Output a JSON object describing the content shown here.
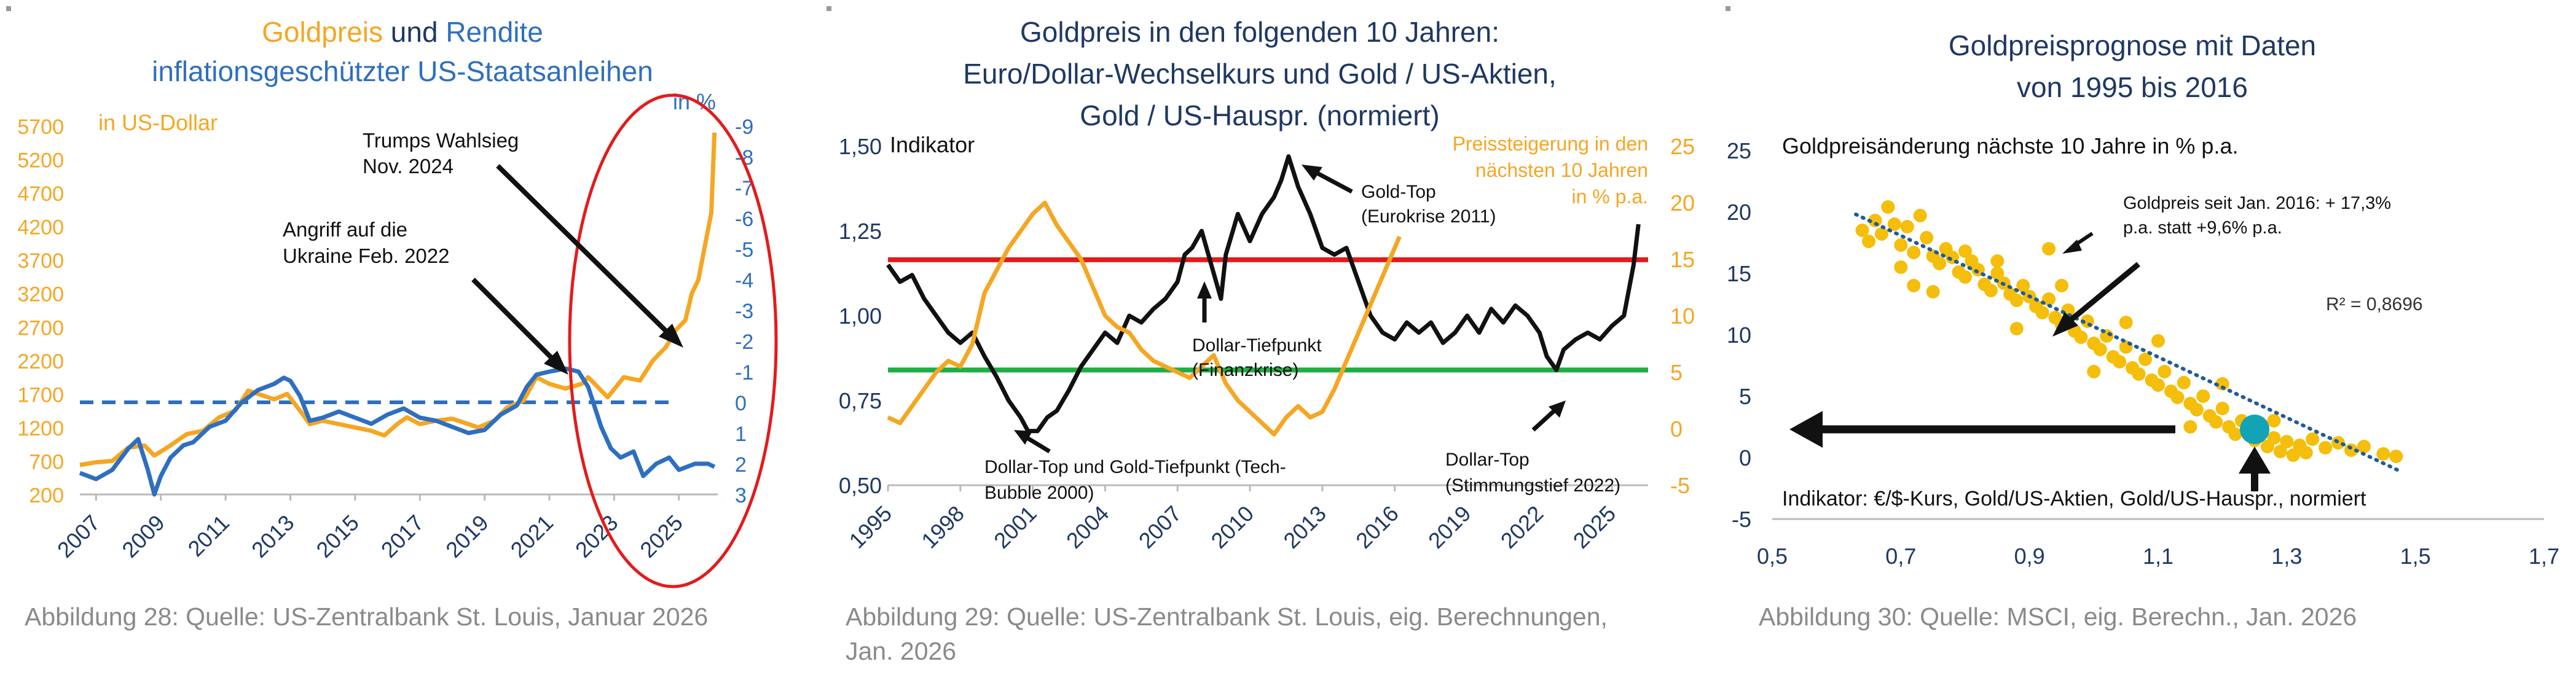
{
  "colors": {
    "gold": "#F5A623",
    "blue": "#2E6FBF",
    "navy": "#1F3864",
    "black": "#111111",
    "red": "#E31B1B",
    "green": "#1FAE45",
    "scatter": "#F5BE0B",
    "teal": "#12A3B5",
    "trend": "#1F5C99",
    "caption": "#8a8a8a"
  },
  "charts": {
    "left": {
      "title": {
        "part1": "Goldpreis",
        "part2": " und ",
        "part3": "Rendite",
        "line2": "inflationsgeschützter US-Staatsanleihen"
      },
      "left_axis_label": "in US-Dollar",
      "right_axis_label": "in %",
      "annotations": {
        "trump_1": "Trumps Wahlsieg",
        "trump_2": "Nov. 2024",
        "ukraine_1": "Angriff auf die",
        "ukraine_2": "Ukraine Feb. 2022"
      },
      "caption": "Abbildung 28: Quelle: US-Zentralbank St. Louis, Januar 2026"
    },
    "middle": {
      "title": {
        "line1": "Goldpreis in den folgenden 10 Jahren:",
        "line2": "Euro/Dollar-Wechselkurs und Gold / US-Aktien,",
        "line3": "Gold / US-Hauspr. (normiert)"
      },
      "left_axis_label": "Indikator",
      "right_axis_label": {
        "line1": "Preissteigerung in den",
        "line2": "nächsten 10 Jahren",
        "line3": "in % p.a."
      },
      "annotations": {
        "goldtop_1": "Gold-Top",
        "goldtop_2": "(Eurokrise 2011)",
        "tief_1": "Dollar-Tiefpunkt",
        "tief_2": "(Finanzkrise)",
        "dtop_1": "Dollar-Top und Gold-Tiefpunkt (Tech-",
        "dtop_2": "Bubble 2000)",
        "dtop2_1": "Dollar-Top",
        "dtop2_2": "(Stimmungstief 2022)"
      },
      "caption_1": "Abbildung 29: Quelle: US-Zentralbank St. Louis, eig. Berechnungen,",
      "caption_2": "Jan. 2026"
    },
    "right": {
      "title": {
        "line1": "Goldpreisprognose mit Daten",
        "line2": "von 1995 bis 2016"
      },
      "y_axis_label": "Goldpreisänderung nächste 10 Jahre in % p.a.",
      "annotation_1": "Goldpreis seit Jan. 2016: + 17,3%",
      "annotation_2": "p.a. statt +9,6% p.a.",
      "r2": "R² = 0,8696",
      "x_axis_label": "Indikator: €/$-Kurs, Gold/US-Aktien, Gold/US-Hauspr., normiert",
      "caption": "Abbildung 30: Quelle: MSCI, eig. Berechn., Jan. 2026"
    }
  },
  "chart_data": [
    {
      "type": "line",
      "title": "Goldpreis und Rendite inflationsgeschützter US-Staatsanleihen",
      "x_ticks": [
        "2007",
        "2009",
        "2011",
        "2013",
        "2015",
        "2017",
        "2019",
        "2021",
        "2023",
        "2025"
      ],
      "xlim": [
        2006.5,
        2026.2
      ],
      "y_left": {
        "label": "in US-Dollar",
        "ylim": [
          200,
          5700
        ],
        "ticks": [
          200,
          700,
          1200,
          1700,
          2200,
          2700,
          3200,
          3700,
          4200,
          4700,
          5200,
          5700
        ]
      },
      "y_right": {
        "label": "in %",
        "ylim": [
          3,
          -9
        ],
        "ticks": [
          3,
          2,
          1,
          0,
          -1,
          -2,
          -3,
          -4,
          -5,
          -6,
          -7,
          -8,
          -9
        ],
        "inverted": true
      },
      "reference_line": {
        "axis": "right",
        "value": 0,
        "style": "dashed"
      },
      "series": [
        {
          "name": "Goldpreis",
          "axis": "left",
          "color": "gold",
          "x": [
            2006.5,
            2007,
            2007.5,
            2008,
            2008.5,
            2008.8,
            2009.2,
            2009.8,
            2010.3,
            2010.8,
            2011.3,
            2011.7,
            2012,
            2012.5,
            2012.9,
            2013.3,
            2013.6,
            2014,
            2014.5,
            2015,
            2015.5,
            2015.9,
            2016.3,
            2016.6,
            2017,
            2017.5,
            2018,
            2018.5,
            2018.8,
            2019.3,
            2019.7,
            2020.2,
            2020.6,
            2021,
            2021.5,
            2022,
            2022.2,
            2022.8,
            2023.3,
            2023.8,
            2024.2,
            2024.6,
            2024.9,
            2025.2,
            2025.4,
            2025.6,
            2025.8,
            2026,
            2026.1
          ],
          "values": [
            640,
            680,
            700,
            900,
            930,
            780,
            900,
            1100,
            1150,
            1350,
            1450,
            1750,
            1700,
            1620,
            1700,
            1450,
            1250,
            1300,
            1250,
            1200,
            1150,
            1080,
            1250,
            1350,
            1250,
            1300,
            1330,
            1250,
            1200,
            1300,
            1500,
            1600,
            1950,
            1850,
            1780,
            1850,
            1950,
            1650,
            1950,
            1900,
            2200,
            2400,
            2650,
            2800,
            3200,
            3400,
            3900,
            4400,
            5600
          ]
        },
        {
          "name": "Rendite inflationsgeschützter US-Staatsanleihen",
          "axis": "right",
          "color": "blue",
          "x": [
            2006.5,
            2007,
            2007.5,
            2008,
            2008.3,
            2008.6,
            2008.8,
            2009,
            2009.3,
            2009.7,
            2010,
            2010.5,
            2011,
            2011.5,
            2012,
            2012.5,
            2012.8,
            2013,
            2013.3,
            2013.6,
            2014,
            2014.5,
            2015,
            2015.5,
            2016,
            2016.5,
            2017,
            2017.5,
            2018,
            2018.5,
            2019,
            2019.5,
            2020,
            2020.3,
            2020.6,
            2021,
            2021.5,
            2021.9,
            2022.2,
            2022.6,
            2022.9,
            2023.2,
            2023.6,
            2023.9,
            2024.3,
            2024.7,
            2025,
            2025.5,
            2025.9,
            2026.1
          ],
          "values": [
            2.3,
            2.5,
            2.2,
            1.5,
            1.2,
            2.2,
            3.0,
            2.4,
            1.8,
            1.4,
            1.3,
            0.8,
            0.6,
            0.0,
            -0.4,
            -0.6,
            -0.8,
            -0.7,
            -0.2,
            0.6,
            0.5,
            0.3,
            0.5,
            0.7,
            0.4,
            0.2,
            0.5,
            0.6,
            0.8,
            1.0,
            0.9,
            0.4,
            0.1,
            -0.5,
            -0.9,
            -1.0,
            -1.1,
            -1.0,
            -0.5,
            0.8,
            1.5,
            1.8,
            1.6,
            2.4,
            2.0,
            1.8,
            2.2,
            2.0,
            2.0,
            2.1
          ]
        }
      ]
    },
    {
      "type": "line",
      "title": "Goldpreis in den folgenden 10 Jahren: Euro/Dollar-Wechselkurs und Gold / US-Aktien, Gold / US-Hauspr. (normiert)",
      "x_ticks": [
        "1995",
        "1998",
        "2001",
        "2004",
        "2007",
        "2010",
        "2013",
        "2016",
        "2019",
        "2022",
        "2025"
      ],
      "xlim": [
        1995,
        2026.5
      ],
      "y_left": {
        "label": "Indikator",
        "ylim": [
          0.5,
          1.5
        ],
        "ticks": [
          "0,50",
          "0,75",
          "1,00",
          "1,25",
          "1,50"
        ]
      },
      "y_right": {
        "label": "Preissteigerung in den nächsten 10 Jahren in % p.a.",
        "ylim": [
          -5,
          25
        ],
        "ticks": [
          -5,
          0,
          5,
          10,
          15,
          20,
          25
        ]
      },
      "reference_lines": [
        {
          "axis": "left",
          "value": 1.165,
          "color": "red"
        },
        {
          "axis": "left",
          "value": 0.84,
          "color": "green"
        }
      ],
      "series": [
        {
          "name": "Indikator",
          "axis": "left",
          "color": "black",
          "x": [
            1995,
            1995.5,
            1996,
            1996.5,
            1997,
            1997.5,
            1998,
            1998.5,
            1999,
            1999.5,
            2000,
            2000.5,
            2000.8,
            2001.2,
            2001.6,
            2002,
            2002.5,
            2003,
            2003.5,
            2004,
            2004.5,
            2005,
            2005.5,
            2006,
            2006.5,
            2007,
            2007.3,
            2007.6,
            2008,
            2008.4,
            2008.8,
            2009,
            2009.5,
            2010,
            2010.5,
            2011,
            2011.3,
            2011.6,
            2012,
            2012.5,
            2013,
            2013.5,
            2014,
            2014.5,
            2015,
            2015.5,
            2016,
            2016.5,
            2017,
            2017.5,
            2018,
            2018.5,
            2019,
            2019.5,
            2020,
            2020.5,
            2021,
            2021.5,
            2022,
            2022.3,
            2022.7,
            2023,
            2023.5,
            2024,
            2024.5,
            2025,
            2025.5,
            2025.9,
            2026.1
          ],
          "values": [
            1.15,
            1.1,
            1.12,
            1.05,
            1.0,
            0.95,
            0.92,
            0.95,
            0.88,
            0.82,
            0.75,
            0.7,
            0.66,
            0.66,
            0.7,
            0.72,
            0.78,
            0.85,
            0.9,
            0.95,
            0.92,
            1.0,
            0.98,
            1.02,
            1.05,
            1.1,
            1.18,
            1.2,
            1.25,
            1.15,
            1.05,
            1.18,
            1.3,
            1.22,
            1.3,
            1.35,
            1.4,
            1.47,
            1.38,
            1.3,
            1.2,
            1.18,
            1.2,
            1.1,
            1.0,
            0.95,
            0.93,
            0.98,
            0.95,
            0.98,
            0.92,
            0.95,
            1.0,
            0.95,
            1.02,
            0.98,
            1.03,
            1.0,
            0.95,
            0.88,
            0.84,
            0.9,
            0.93,
            0.95,
            0.93,
            0.97,
            1.0,
            1.15,
            1.27
          ]
        },
        {
          "name": "Preissteigerung in den nächsten 10 Jahren",
          "axis": "right",
          "color": "gold",
          "x": [
            1995,
            1995.5,
            1996,
            1996.5,
            1997,
            1997.5,
            1998,
            1998.5,
            1999,
            1999.5,
            2000,
            2000.5,
            2001,
            2001.5,
            2002,
            2002.5,
            2003,
            2003.5,
            2004,
            2004.5,
            2005,
            2005.5,
            2006,
            2006.5,
            2007,
            2007.5,
            2008,
            2008.5,
            2009,
            2009.5,
            2010,
            2010.5,
            2011,
            2011.5,
            2012,
            2012.5,
            2013,
            2013.5,
            2014,
            2014.5,
            2015,
            2015.5,
            2016.2
          ],
          "values": [
            1.0,
            0.5,
            2.0,
            3.5,
            5.0,
            6.0,
            5.5,
            7.5,
            12.0,
            14.0,
            16.0,
            17.5,
            19.0,
            20.0,
            18.0,
            16.5,
            15.0,
            12.5,
            10.0,
            9.0,
            8.5,
            7.0,
            6.0,
            5.5,
            5.0,
            4.5,
            5.5,
            6.5,
            4.0,
            2.5,
            1.5,
            0.5,
            -0.5,
            1.0,
            2.0,
            1.0,
            1.5,
            3.5,
            6.0,
            8.5,
            11.0,
            13.5,
            17.0
          ]
        }
      ]
    },
    {
      "type": "scatter",
      "title": "Goldpreisprognose mit Daten von 1995 bis 2016",
      "xlabel": "Indikator: €/$-Kurs, Gold/US-Aktien, Gold/US-Hauspr., normiert",
      "ylabel": "Goldpreisänderung nächste 10 Jahre in % p.a.",
      "xlim": [
        0.5,
        1.7
      ],
      "ylim": [
        -5,
        25
      ],
      "x_ticks": [
        "0,5",
        "0,7",
        "0,9",
        "1,1",
        "1,3",
        "1,5",
        "1,7"
      ],
      "y_ticks": [
        -5,
        0,
        5,
        10,
        15,
        20,
        25
      ],
      "points": [
        [
          0.64,
          18.5
        ],
        [
          0.65,
          17.6
        ],
        [
          0.66,
          19.3
        ],
        [
          0.67,
          18.2
        ],
        [
          0.68,
          20.4
        ],
        [
          0.69,
          19.0
        ],
        [
          0.7,
          17.3
        ],
        [
          0.71,
          18.8
        ],
        [
          0.72,
          16.7
        ],
        [
          0.73,
          19.7
        ],
        [
          0.74,
          17.9
        ],
        [
          0.75,
          16.4
        ],
        [
          0.76,
          15.8
        ],
        [
          0.77,
          17.0
        ],
        [
          0.78,
          16.3
        ],
        [
          0.79,
          15.1
        ],
        [
          0.8,
          14.7
        ],
        [
          0.81,
          16.0
        ],
        [
          0.82,
          15.3
        ],
        [
          0.83,
          14.1
        ],
        [
          0.84,
          13.6
        ],
        [
          0.85,
          15.0
        ],
        [
          0.86,
          14.2
        ],
        [
          0.87,
          13.3
        ],
        [
          0.88,
          12.8
        ],
        [
          0.89,
          14.0
        ],
        [
          0.9,
          13.1
        ],
        [
          0.91,
          12.3
        ],
        [
          0.92,
          11.8
        ],
        [
          0.93,
          12.9
        ],
        [
          0.94,
          11.4
        ],
        [
          0.95,
          10.8
        ],
        [
          0.96,
          12.0
        ],
        [
          0.97,
          10.3
        ],
        [
          0.98,
          9.8
        ],
        [
          0.99,
          11.1
        ],
        [
          1.0,
          9.3
        ],
        [
          1.01,
          8.8
        ],
        [
          1.02,
          9.9
        ],
        [
          1.03,
          8.2
        ],
        [
          1.04,
          7.8
        ],
        [
          1.05,
          9.0
        ],
        [
          1.06,
          7.3
        ],
        [
          1.07,
          6.8
        ],
        [
          1.08,
          8.0
        ],
        [
          1.09,
          6.3
        ],
        [
          1.1,
          5.9
        ],
        [
          1.11,
          7.0
        ],
        [
          1.12,
          5.4
        ],
        [
          1.13,
          4.9
        ],
        [
          1.14,
          6.1
        ],
        [
          1.15,
          4.4
        ],
        [
          1.16,
          3.9
        ],
        [
          1.17,
          5.0
        ],
        [
          1.18,
          3.4
        ],
        [
          1.19,
          2.9
        ],
        [
          1.2,
          4.0
        ],
        [
          1.21,
          2.5
        ],
        [
          1.22,
          1.9
        ],
        [
          1.23,
          3.0
        ],
        [
          1.24,
          2.6
        ],
        [
          1.25,
          1.4
        ],
        [
          1.26,
          2.2
        ],
        [
          1.27,
          0.9
        ],
        [
          1.28,
          1.6
        ],
        [
          1.29,
          0.5
        ],
        [
          1.3,
          1.3
        ],
        [
          1.31,
          0.2
        ],
        [
          1.32,
          1.0
        ],
        [
          1.33,
          0.4
        ],
        [
          1.34,
          1.5
        ],
        [
          1.36,
          0.8
        ],
        [
          1.38,
          1.2
        ],
        [
          1.4,
          0.6
        ],
        [
          1.42,
          0.9
        ],
        [
          1.45,
          0.3
        ],
        [
          1.47,
          0.1
        ],
        [
          0.8,
          16.8
        ],
        [
          0.85,
          16.0
        ],
        [
          0.95,
          14.0
        ],
        [
          1.05,
          11.0
        ],
        [
          1.1,
          9.5
        ],
        [
          1.2,
          6.0
        ],
        [
          1.28,
          3.0
        ],
        [
          0.75,
          13.5
        ],
        [
          0.88,
          10.5
        ],
        [
          1.0,
          7.0
        ],
        [
          1.15,
          2.5
        ],
        [
          0.93,
          17.0
        ],
        [
          0.7,
          15.5
        ],
        [
          0.72,
          14.0
        ]
      ],
      "highlight_point": {
        "x": 1.25,
        "y": 2.3,
        "label": "Goldpreis seit Jan. 2016"
      },
      "trendline": {
        "style": "dotted",
        "x": [
          0.63,
          1.48
        ],
        "y": [
          19.8,
          -1.2
        ]
      },
      "r_squared": "R² = 0,8696",
      "arrow_left_at_y": 2.3
    }
  ]
}
